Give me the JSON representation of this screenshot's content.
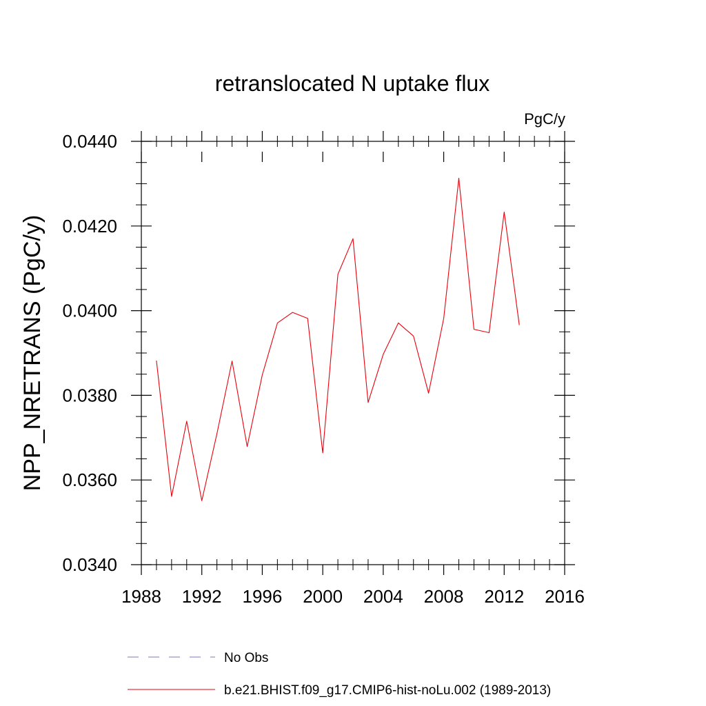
{
  "chart_data": {
    "type": "line",
    "title": "retranslocated N uptake flux",
    "units": "PgC/y",
    "xlabel": "",
    "ylabel": "NPP_NRETRANS  (PgC/y)",
    "xlim": [
      1988,
      2016
    ],
    "ylim": [
      0.034,
      0.044
    ],
    "x_ticks": [
      1988,
      1992,
      1996,
      2000,
      2004,
      2008,
      2012,
      2016
    ],
    "x_tick_labels": [
      "1988",
      "1992",
      "1996",
      "2000",
      "2004",
      "2008",
      "2012",
      "2016"
    ],
    "x_minor_step": 1,
    "y_ticks": [
      0.034,
      0.036,
      0.038,
      0.04,
      0.042,
      0.044
    ],
    "y_tick_labels": [
      "0.0340",
      "0.0360",
      "0.0380",
      "0.0400",
      "0.0420",
      "0.0440"
    ],
    "y_minor_step": 0.0005,
    "grid": false,
    "legend_position": "bottom",
    "series": [
      {
        "name": "b.e21.BHIST.f09_g17.CMIP6-hist-noLu.002 (1989-2013)",
        "color": "#e8000b",
        "style": "solid",
        "x": [
          1989,
          1990,
          1991,
          1992,
          1993,
          1994,
          1995,
          1996,
          1997,
          1998,
          1999,
          2000,
          2001,
          2002,
          2003,
          2004,
          2005,
          2006,
          2007,
          2008,
          2009,
          2010,
          2011,
          2012,
          2013
        ],
        "values": [
          0.03882,
          0.03561,
          0.03739,
          0.03551,
          0.03709,
          0.03881,
          0.03679,
          0.03848,
          0.03971,
          0.03996,
          0.03982,
          0.03664,
          0.04086,
          0.0417,
          0.03783,
          0.03897,
          0.03971,
          0.0394,
          0.03805,
          0.03982,
          0.04313,
          0.03956,
          0.03948,
          0.04233,
          0.03966
        ]
      }
    ],
    "legend": [
      {
        "label": "No Obs",
        "color": "#7777bb",
        "style": "dashed"
      },
      {
        "label": "b.e21.BHIST.f09_g17.CMIP6-hist-noLu.002 (1989-2013)",
        "color": "#e8000b",
        "style": "solid"
      }
    ]
  }
}
